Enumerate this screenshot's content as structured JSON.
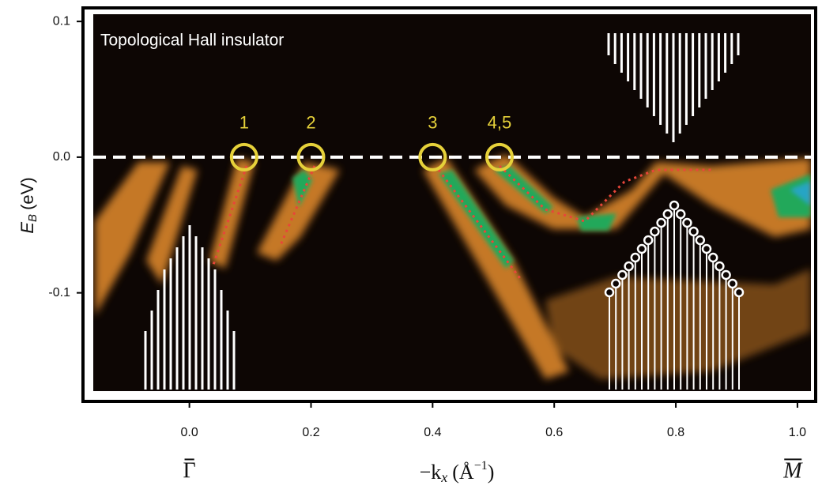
{
  "chart_data": {
    "type": "arpes",
    "title": "Topological Hall insulator",
    "xlabel": [
      "−k",
      "x",
      "(Å",
      "−1",
      ")"
    ],
    "ylabel": [
      "E",
      "B",
      "(eV)"
    ],
    "xlim": [
      -0.175,
      1.03
    ],
    "ylim": [
      -0.18,
      0.11
    ],
    "xticks": [
      {
        "value": 0,
        "label": "0.0"
      },
      {
        "value": 0.2,
        "label": "0.2"
      },
      {
        "value": 0.4,
        "label": "0.4"
      },
      {
        "value": 0.6,
        "label": "0.6"
      },
      {
        "value": 0.8,
        "label": "0.8"
      },
      {
        "value": 1,
        "label": "1.0"
      }
    ],
    "yticks": [
      0.1,
      {
        "value": 0,
        "label": "0.0"
      },
      -0.1
    ],
    "crossings": [
      {
        "label": "1",
        "x": 0.09,
        "y": 0
      },
      {
        "label": "2",
        "x": 0.2,
        "y": 0
      },
      {
        "label": "3",
        "x": 0.4,
        "y": 0
      },
      {
        "label": "4,5",
        "x": 0.51,
        "y": 0
      }
    ],
    "points": [
      {
        "label": "Γ",
        "x": 0
      },
      {
        "label": "M",
        "x": 1
      }
    ],
    "crossing_color": "#e6d13a"
  }
}
